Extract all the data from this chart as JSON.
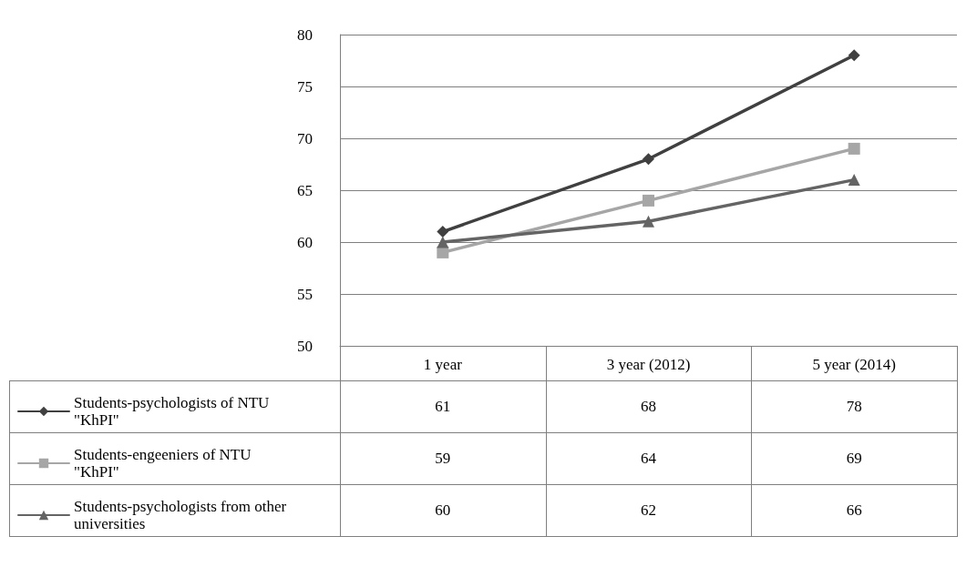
{
  "chart_data": {
    "type": "line",
    "categories": [
      "1 year",
      "3 year (2012)",
      "5 year (2014)"
    ],
    "series": [
      {
        "name": "Students-psychologists of NTU \"KhPI\"",
        "color": "#404040",
        "marker": "diamond",
        "values": [
          61,
          68,
          78
        ]
      },
      {
        "name": "Students-engeeniers of NTU \"KhPI\"",
        "color": "#a6a6a6",
        "marker": "square",
        "values": [
          59,
          64,
          69
        ]
      },
      {
        "name": "Students-psychologists from other universities",
        "color": "#646464",
        "marker": "triangle",
        "values": [
          60,
          62,
          66
        ]
      }
    ],
    "ylim": [
      50,
      80
    ],
    "yticks": [
      50,
      55,
      60,
      65,
      70,
      75,
      80
    ],
    "grid": "y",
    "legend": "bottom",
    "data_labels": true
  }
}
